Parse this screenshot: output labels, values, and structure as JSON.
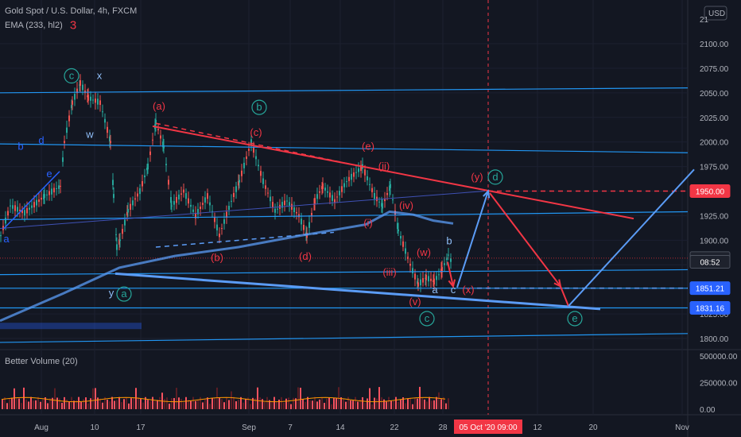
{
  "header": {
    "title": "Gold Spot / U.S. Dollar, 4h, FXCM",
    "indicator": "EMA (233, hl2)",
    "currency": "USD"
  },
  "volume_panel": {
    "title": "Better Volume (20)"
  },
  "chart_data": {
    "type": "candlestick",
    "price_axis": {
      "ticks": [
        "2100.00",
        "2075.00",
        "2050.00",
        "2025.00",
        "2000.00",
        "1975.00",
        "1950.00",
        "1925.00",
        "1900.00",
        "1875.00",
        "1850.00",
        "1825.00",
        "1800.00"
      ],
      "ylim": [
        1795,
        2125
      ],
      "top_partial": "21"
    },
    "volume_axis": {
      "ticks": [
        "500000.00",
        "250000.00",
        "0.00"
      ],
      "ylim": [
        0,
        560000
      ]
    },
    "x_axis": {
      "ticks": [
        "Aug",
        "10",
        "17",
        "Sep",
        "7",
        "14",
        "22",
        "28",
        "12",
        "20",
        "Nov"
      ],
      "highlight_label": "05 Oct '20   09:00"
    },
    "price_labels": [
      {
        "value": 1950.0,
        "text": "1950.00",
        "color": "#f23645"
      },
      {
        "value": 1881.75,
        "text": "1881.75",
        "color": "#1e222d"
      },
      {
        "value": 1878.0,
        "text": "08:52",
        "color": "#1e222d"
      },
      {
        "value": 1851.21,
        "text": "1851.21",
        "color": "#2962ff"
      },
      {
        "value": 1831.16,
        "text": "1831.16",
        "color": "#2962ff"
      }
    ],
    "horizontal_levels": [
      1851.21,
      1831.16
    ],
    "ema_points": [
      [
        0,
        1818
      ],
      [
        80,
        1846
      ],
      [
        150,
        1872
      ],
      [
        220,
        1884
      ],
      [
        300,
        1893
      ],
      [
        380,
        1905
      ],
      [
        460,
        1916
      ],
      [
        490,
        1929
      ],
      [
        520,
        1926
      ],
      [
        545,
        1920
      ],
      [
        570,
        1917
      ]
    ],
    "price_path": [
      [
        0,
        1905
      ],
      [
        12,
        1935
      ],
      [
        30,
        1928
      ],
      [
        55,
        1945
      ],
      [
        75,
        1955
      ],
      [
        80,
        2000
      ],
      [
        90,
        2040
      ],
      [
        100,
        2060
      ],
      [
        110,
        2045
      ],
      [
        125,
        2040
      ],
      [
        138,
        2000
      ],
      [
        142,
        1945
      ],
      [
        146,
        1893
      ],
      [
        150,
        1900
      ],
      [
        160,
        1930
      ],
      [
        175,
        1950
      ],
      [
        185,
        1975
      ],
      [
        195,
        2020
      ],
      [
        205,
        1995
      ],
      [
        215,
        1935
      ],
      [
        230,
        1950
      ],
      [
        245,
        1925
      ],
      [
        260,
        1945
      ],
      [
        275,
        1905
      ],
      [
        290,
        1940
      ],
      [
        300,
        1960
      ],
      [
        315,
        2000
      ],
      [
        330,
        1960
      ],
      [
        345,
        1930
      ],
      [
        360,
        1940
      ],
      [
        375,
        1925
      ],
      [
        385,
        1905
      ],
      [
        395,
        1940
      ],
      [
        405,
        1955
      ],
      [
        420,
        1940
      ],
      [
        435,
        1960
      ],
      [
        455,
        1975
      ],
      [
        470,
        1945
      ],
      [
        480,
        1935
      ],
      [
        490,
        1955
      ],
      [
        500,
        1910
      ],
      [
        515,
        1875
      ],
      [
        525,
        1855
      ],
      [
        535,
        1862
      ],
      [
        545,
        1858
      ],
      [
        555,
        1870
      ],
      [
        563,
        1885
      ],
      [
        567,
        1878
      ]
    ],
    "wave_labels": [
      {
        "text": "3",
        "x": 92,
        "price": 2115,
        "color": "#f23645"
      },
      {
        "text": "c",
        "x": 90,
        "price": 2064,
        "color": "#26a69a",
        "circled": true
      },
      {
        "text": "x",
        "x": 125,
        "price": 2064,
        "color": "#90bff9"
      },
      {
        "text": "w",
        "x": 113,
        "price": 2004,
        "color": "#90bff9"
      },
      {
        "text": "b",
        "x": 26,
        "price": 1992,
        "color": "#2962ff"
      },
      {
        "text": "d",
        "x": 52,
        "price": 1998,
        "color": "#2962ff"
      },
      {
        "text": "e",
        "x": 62,
        "price": 1964,
        "color": "#2962ff"
      },
      {
        "text": "a",
        "x": 8,
        "price": 1898,
        "color": "#2962ff"
      },
      {
        "text": "y",
        "x": 140,
        "price": 1843,
        "color": "#90bff9"
      },
      {
        "text": "a",
        "x": 156,
        "price": 1842,
        "color": "#26a69a",
        "circled": true
      },
      {
        "text": "(a)",
        "x": 200,
        "price": 2033,
        "color": "#f23645"
      },
      {
        "text": "b",
        "x": 326,
        "price": 2032,
        "color": "#26a69a",
        "circled": true
      },
      {
        "text": "(c)",
        "x": 322,
        "price": 2006,
        "color": "#f23645"
      },
      {
        "text": "(e)",
        "x": 463,
        "price": 1992,
        "color": "#f23645"
      },
      {
        "text": "(ii)",
        "x": 483,
        "price": 1972,
        "color": "#f23645"
      },
      {
        "text": "(y)",
        "x": 600,
        "price": 1961,
        "color": "#f23645"
      },
      {
        "text": "d",
        "x": 623,
        "price": 1961,
        "color": "#26a69a",
        "circled": true
      },
      {
        "text": "(iv)",
        "x": 511,
        "price": 1932,
        "color": "#f23645"
      },
      {
        "text": "(i)",
        "x": 463,
        "price": 1914,
        "color": "#f23645"
      },
      {
        "text": "(b)",
        "x": 273,
        "price": 1879,
        "color": "#f23645"
      },
      {
        "text": "(d)",
        "x": 384,
        "price": 1880,
        "color": "#f23645"
      },
      {
        "text": "(w)",
        "x": 533,
        "price": 1884,
        "color": "#f23645"
      },
      {
        "text": "b",
        "x": 565,
        "price": 1896,
        "color": "#90bff9"
      },
      {
        "text": "(iii)",
        "x": 490,
        "price": 1864,
        "color": "#f23645"
      },
      {
        "text": "(v)",
        "x": 522,
        "price": 1834,
        "color": "#f23645"
      },
      {
        "text": "a",
        "x": 547,
        "price": 1846,
        "color": "#90bff9"
      },
      {
        "text": "c",
        "x": 570,
        "price": 1846,
        "color": "#90bff9"
      },
      {
        "text": "(x)",
        "x": 589,
        "price": 1846,
        "color": "#f23645"
      },
      {
        "text": "c",
        "x": 537,
        "price": 1817,
        "color": "#26a69a",
        "circled": true
      },
      {
        "text": "e",
        "x": 723,
        "price": 1817,
        "color": "#26a69a",
        "circled": true
      }
    ]
  }
}
